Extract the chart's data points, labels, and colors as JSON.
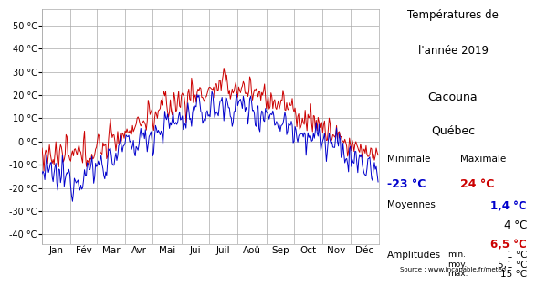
{
  "title_line1": "Températures de",
  "title_line2": "l'année 2019",
  "location_line1": "Cacouna",
  "location_line2": "Québec",
  "min_label": "Minimale",
  "max_label": "Maximale",
  "min_val_blue": "-23 °C",
  "max_val_red": "24 °C",
  "moy_label": "Moyennes",
  "moy_blue": "1,4 °C",
  "moy_black": "4 °C",
  "moy_red": "6,5 °C",
  "amp_label": "Amplitudes",
  "amp_min_label": "min.",
  "amp_min_val": "1 °C",
  "amp_moy_label": "moy.",
  "amp_moy_val": "5,1 °C",
  "amp_max_label": "max.",
  "amp_max_val": "15 °C",
  "source": "Source : www.incapable.fr/meteo",
  "yticks": [
    -40,
    -30,
    -20,
    -10,
    0,
    10,
    20,
    30,
    40,
    50
  ],
  "ylim": [
    -44,
    57
  ],
  "months": [
    "Jan",
    "Fév",
    "Mar",
    "Avr",
    "Mai",
    "Jui",
    "Juil",
    "Aoû",
    "Sep",
    "Oct",
    "Nov",
    "Déc"
  ],
  "color_red": "#cc0000",
  "color_blue": "#0000cc",
  "color_black": "#000000",
  "bg_color": "#ffffff",
  "grid_color": "#aaaaaa"
}
